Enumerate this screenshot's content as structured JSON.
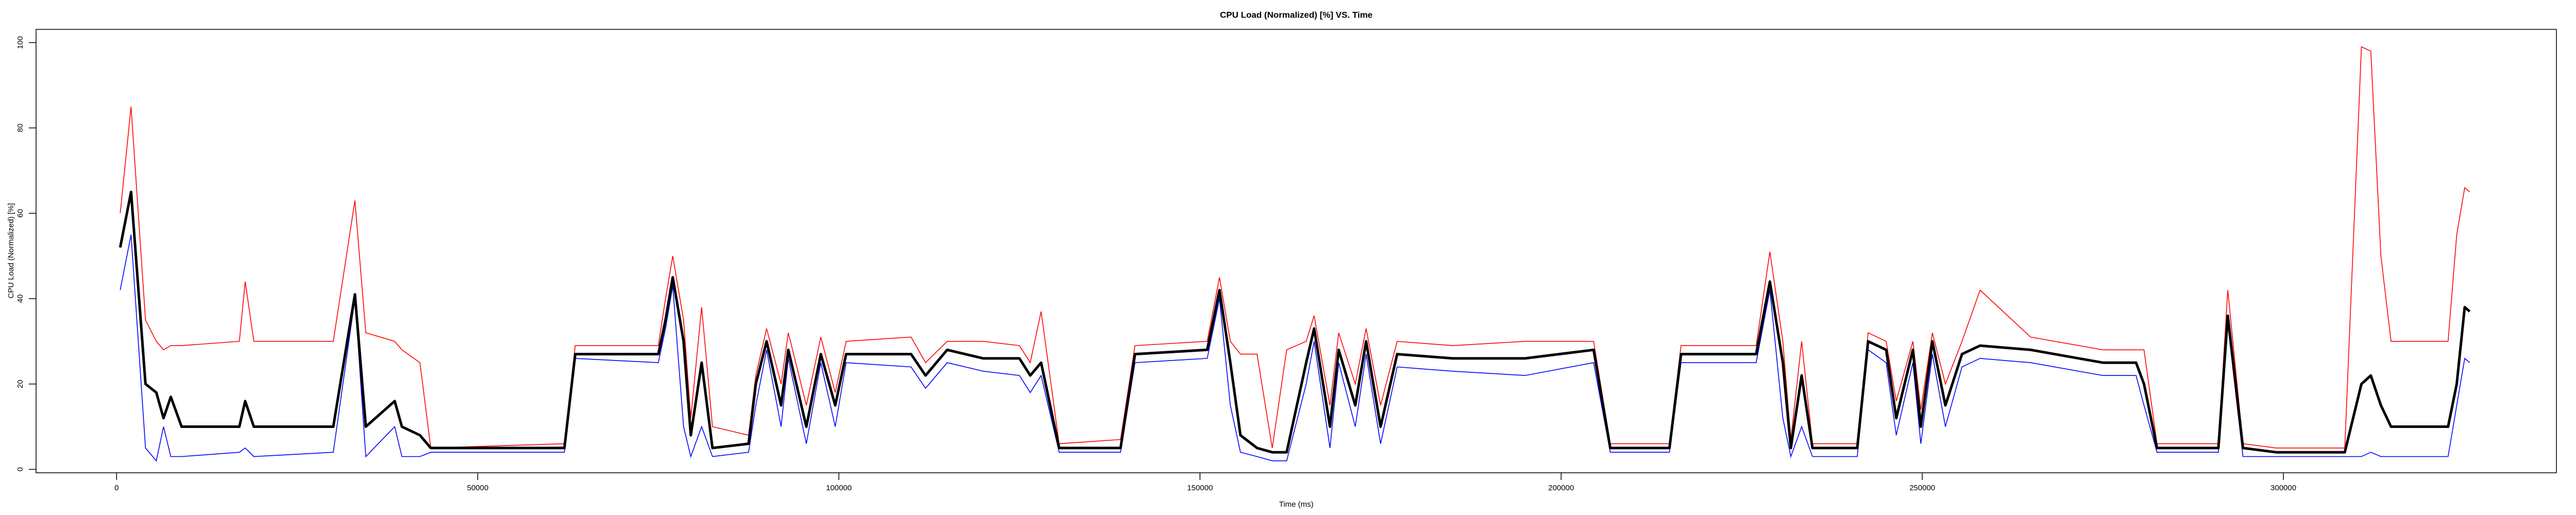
{
  "chart_data": {
    "type": "line",
    "title": "CPU Load (Normalized) [%]  VS.  Time",
    "x_label": "Time (ms)",
    "y_label": "CPU Load (Normalized) [%]",
    "x": [
      500,
      2000,
      4000,
      5500,
      6500,
      7500,
      9000,
      17000,
      17800,
      19000,
      30000,
      33000,
      34500,
      38500,
      39500,
      42000,
      43500,
      62000,
      63500,
      75000,
      76000,
      77000,
      78500,
      79500,
      81000,
      82500,
      87500,
      88500,
      90000,
      92000,
      93000,
      95500,
      97500,
      99500,
      101000,
      110000,
      112000,
      115000,
      120000,
      125000,
      126500,
      128000,
      130500,
      139000,
      141000,
      151000,
      152700,
      154200,
      155600,
      157900,
      160000,
      162000,
      164700,
      165800,
      168000,
      169200,
      171500,
      173000,
      175000,
      177300,
      185000,
      195000,
      204500,
      206800,
      215000,
      216600,
      227000,
      228900,
      230700,
      231800,
      233300,
      234800,
      241000,
      242500,
      245000,
      246400,
      248700,
      249800,
      251400,
      253200,
      255500,
      258000,
      265000,
      275000,
      279600,
      280700,
      282500,
      291000,
      292300,
      294400,
      299000,
      308500,
      310800,
      312100,
      313500,
      314900,
      322800,
      324000,
      325100,
      325800
    ],
    "series": [
      {
        "color": "#ff0000",
        "values": [
          60,
          85,
          35,
          30,
          28,
          29,
          29,
          30,
          44,
          30,
          30,
          63,
          32,
          30,
          28,
          25,
          5,
          6,
          29,
          29,
          40,
          50,
          35,
          12,
          38,
          10,
          8,
          22,
          33,
          20,
          32,
          15,
          31,
          18,
          30,
          31,
          25,
          30,
          30,
          29,
          25,
          37,
          6,
          7,
          29,
          30,
          45,
          30,
          27,
          27,
          5,
          28,
          30,
          36,
          15,
          32,
          20,
          33,
          15,
          30,
          29,
          30,
          30,
          6,
          6,
          29,
          29,
          51,
          30,
          7,
          30,
          6,
          6,
          32,
          30,
          16,
          30,
          14,
          32,
          20,
          30,
          42,
          31,
          28,
          28,
          28,
          6,
          6,
          42,
          6,
          5,
          5,
          99,
          98,
          50,
          30,
          30,
          55,
          66,
          65
        ]
      },
      {
        "color": "#0000ff",
        "values": [
          42,
          55,
          5,
          2,
          10,
          3,
          3,
          4,
          5,
          3,
          4,
          40,
          3,
          10,
          3,
          3,
          4,
          4,
          26,
          25,
          33,
          43,
          10,
          3,
          10,
          3,
          4,
          15,
          28,
          10,
          26,
          6,
          25,
          10,
          25,
          24,
          19,
          25,
          23,
          22,
          18,
          22,
          4,
          4,
          25,
          26,
          40,
          15,
          4,
          3,
          2,
          2,
          20,
          30,
          5,
          25,
          10,
          27,
          6,
          24,
          23,
          22,
          25,
          4,
          4,
          25,
          25,
          42,
          12,
          3,
          10,
          3,
          3,
          28,
          25,
          8,
          25,
          6,
          27,
          10,
          24,
          26,
          25,
          22,
          22,
          15,
          4,
          4,
          34,
          3,
          3,
          3,
          3,
          4,
          3,
          3,
          3,
          15,
          26,
          25
        ]
      },
      {
        "color": "#000000",
        "values": [
          52,
          65,
          20,
          18,
          12,
          17,
          10,
          10,
          16,
          10,
          10,
          41,
          10,
          16,
          10,
          8,
          5,
          5,
          27,
          27,
          35,
          45,
          30,
          8,
          25,
          5,
          6,
          20,
          30,
          15,
          28,
          10,
          27,
          15,
          27,
          27,
          22,
          28,
          26,
          26,
          22,
          25,
          5,
          5,
          27,
          28,
          42,
          25,
          8,
          5,
          4,
          4,
          25,
          33,
          10,
          28,
          15,
          30,
          10,
          27,
          26,
          26,
          28,
          5,
          5,
          27,
          27,
          44,
          25,
          5,
          22,
          5,
          5,
          30,
          28,
          12,
          28,
          10,
          30,
          15,
          27,
          29,
          28,
          25,
          25,
          20,
          5,
          5,
          36,
          5,
          4,
          4,
          20,
          22,
          15,
          10,
          10,
          20,
          38,
          37
        ]
      }
    ],
    "xlim": [
      -11150,
      337800
    ],
    "ylim": [
      -0.8,
      103.1
    ],
    "xticks": [
      0,
      50000,
      100000,
      150000,
      200000,
      250000,
      300000
    ],
    "yticks": [
      0,
      20,
      40,
      60,
      80,
      100
    ]
  }
}
